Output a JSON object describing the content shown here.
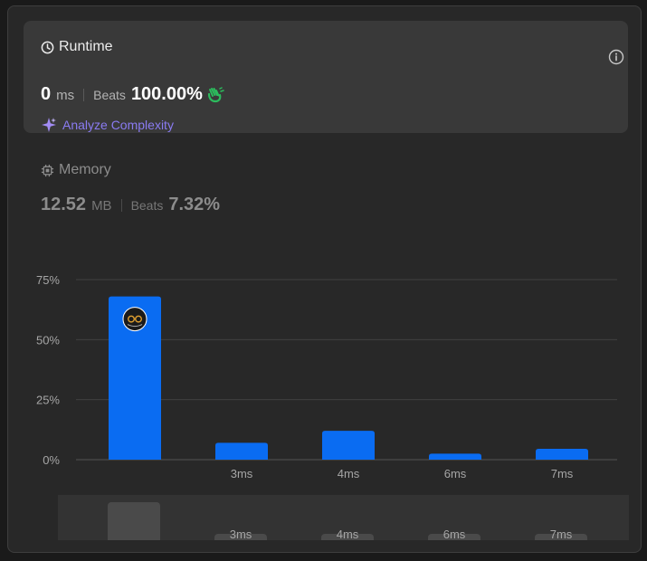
{
  "runtime": {
    "title": "Runtime",
    "value": "0",
    "unit": "ms",
    "beats_label": "Beats",
    "beats_value": "100.00%",
    "analyze_label": "Analyze Complexity",
    "icon": "clock-icon",
    "accent_color": "#8a7bf2"
  },
  "memory": {
    "title": "Memory",
    "value": "12.52",
    "unit": "MB",
    "beats_label": "Beats",
    "beats_value": "7.32%",
    "icon": "chip-icon"
  },
  "chart_data": {
    "type": "bar",
    "categories": [
      "",
      "3ms",
      "4ms",
      "6ms",
      "7ms"
    ],
    "values": [
      68,
      7,
      12,
      2.5,
      4.5
    ],
    "ylim": [
      0,
      75
    ],
    "yticks": [
      0,
      25,
      50,
      75
    ],
    "ytick_labels": [
      "0%",
      "25%",
      "50%",
      "75%"
    ],
    "grid": true,
    "bar_color": "#0a6cf2",
    "highlight_index": 0
  },
  "navigator": {
    "labels": [
      "3ms",
      "4ms",
      "6ms",
      "7ms"
    ]
  }
}
